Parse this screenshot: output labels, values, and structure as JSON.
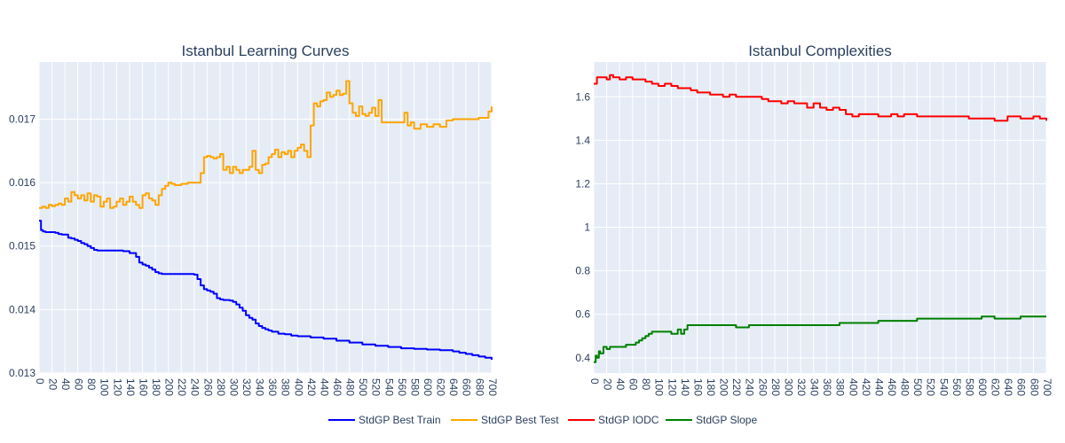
{
  "chart_data": [
    {
      "type": "line",
      "title": "Istanbul Learning Curves",
      "xlabel": "",
      "ylabel": "",
      "xlim": [
        0,
        700
      ],
      "ylim": [
        0.013,
        0.0179
      ],
      "x_ticks": [
        0,
        20,
        40,
        60,
        80,
        100,
        120,
        140,
        160,
        180,
        200,
        220,
        240,
        260,
        280,
        300,
        320,
        340,
        360,
        380,
        400,
        420,
        440,
        460,
        480,
        500,
        520,
        540,
        560,
        580,
        600,
        620,
        640,
        660,
        680,
        700
      ],
      "y_ticks": [
        0.013,
        0.014,
        0.015,
        0.016,
        0.017
      ],
      "y_tick_labels": [
        "0.013",
        "0.014",
        "0.015",
        "0.016",
        "0.017"
      ],
      "grid": true,
      "series": [
        {
          "name": "StdGP Best Train",
          "color": "#0000ff",
          "x": [
            0,
            3,
            6,
            10,
            25,
            30,
            35,
            45,
            50,
            55,
            60,
            65,
            70,
            75,
            80,
            85,
            90,
            100,
            130,
            140,
            150,
            155,
            160,
            165,
            170,
            175,
            180,
            185,
            190,
            200,
            240,
            245,
            250,
            255,
            260,
            265,
            270,
            275,
            280,
            285,
            295,
            300,
            305,
            310,
            315,
            320,
            325,
            330,
            335,
            340,
            345,
            350,
            355,
            360,
            370,
            380,
            390,
            400,
            420,
            440,
            460,
            480,
            500,
            520,
            540,
            560,
            580,
            600,
            620,
            640,
            650,
            660,
            670,
            680,
            690,
            700
          ],
          "values": [
            0.0154,
            0.01525,
            0.01523,
            0.01522,
            0.01521,
            0.01519,
            0.01518,
            0.01513,
            0.01512,
            0.0151,
            0.01508,
            0.01505,
            0.01503,
            0.015,
            0.01497,
            0.01494,
            0.01493,
            0.01493,
            0.01492,
            0.01489,
            0.01483,
            0.01474,
            0.01471,
            0.01469,
            0.01466,
            0.01463,
            0.01459,
            0.01457,
            0.01456,
            0.01456,
            0.01455,
            0.01448,
            0.01438,
            0.01432,
            0.0143,
            0.01428,
            0.01425,
            0.01418,
            0.01416,
            0.01415,
            0.01414,
            0.01412,
            0.01408,
            0.01403,
            0.01398,
            0.01391,
            0.01387,
            0.01384,
            0.01378,
            0.01374,
            0.01371,
            0.01369,
            0.01367,
            0.01365,
            0.01362,
            0.01361,
            0.01359,
            0.01358,
            0.01356,
            0.01354,
            0.01351,
            0.01348,
            0.01345,
            0.01343,
            0.01341,
            0.01339,
            0.01338,
            0.01337,
            0.01336,
            0.01334,
            0.01332,
            0.0133,
            0.01328,
            0.01326,
            0.01324,
            0.01321
          ]
        },
        {
          "name": "StdGP Best Test",
          "color": "#ffa500",
          "x": [
            0,
            5,
            10,
            15,
            20,
            25,
            30,
            35,
            40,
            45,
            50,
            55,
            60,
            65,
            70,
            75,
            80,
            85,
            90,
            95,
            100,
            105,
            110,
            115,
            120,
            125,
            130,
            135,
            140,
            145,
            150,
            155,
            160,
            165,
            170,
            175,
            180,
            185,
            190,
            195,
            200,
            205,
            210,
            220,
            230,
            240,
            250,
            255,
            260,
            265,
            270,
            275,
            280,
            285,
            290,
            295,
            300,
            305,
            310,
            315,
            320,
            325,
            330,
            335,
            340,
            345,
            350,
            355,
            360,
            365,
            370,
            375,
            380,
            385,
            390,
            395,
            400,
            405,
            410,
            415,
            420,
            425,
            430,
            435,
            440,
            445,
            450,
            455,
            460,
            465,
            470,
            475,
            480,
            485,
            490,
            495,
            500,
            505,
            510,
            515,
            520,
            525,
            530,
            540,
            550,
            560,
            565,
            570,
            575,
            580,
            590,
            600,
            610,
            620,
            630,
            640,
            660,
            680,
            690,
            695,
            700
          ],
          "values": [
            0.0156,
            0.01562,
            0.0156,
            0.01565,
            0.01563,
            0.01565,
            0.01567,
            0.01565,
            0.01575,
            0.0157,
            0.01585,
            0.0158,
            0.01575,
            0.0158,
            0.01572,
            0.01583,
            0.0157,
            0.0158,
            0.01578,
            0.01562,
            0.0157,
            0.01575,
            0.0156,
            0.01562,
            0.0157,
            0.01575,
            0.01565,
            0.0157,
            0.01578,
            0.0157,
            0.01565,
            0.0156,
            0.0158,
            0.01583,
            0.01575,
            0.01572,
            0.01565,
            0.0158,
            0.0159,
            0.01595,
            0.016,
            0.01598,
            0.01596,
            0.01598,
            0.016,
            0.016,
            0.01615,
            0.0164,
            0.01642,
            0.0164,
            0.01638,
            0.0164,
            0.01645,
            0.0162,
            0.01625,
            0.01615,
            0.01625,
            0.0162,
            0.01615,
            0.0162,
            0.0162,
            0.01625,
            0.0165,
            0.0162,
            0.01615,
            0.01628,
            0.0163,
            0.0164,
            0.01645,
            0.01652,
            0.0164,
            0.01648,
            0.01645,
            0.0165,
            0.0164,
            0.0165,
            0.01655,
            0.0166,
            0.0165,
            0.0164,
            0.0169,
            0.01725,
            0.0172,
            0.01728,
            0.0173,
            0.01742,
            0.01735,
            0.01738,
            0.01745,
            0.01738,
            0.0174,
            0.0176,
            0.01725,
            0.0171,
            0.01705,
            0.0172,
            0.01708,
            0.01705,
            0.0171,
            0.01718,
            0.01705,
            0.0173,
            0.01695,
            0.01695,
            0.01695,
            0.01695,
            0.0171,
            0.0169,
            0.01695,
            0.01685,
            0.01692,
            0.01688,
            0.01692,
            0.01688,
            0.01698,
            0.017,
            0.017,
            0.01702,
            0.01702,
            0.01712,
            0.0172
          ]
        }
      ]
    },
    {
      "type": "line",
      "title": "Istanbul Complexities",
      "xlabel": "",
      "ylabel": "",
      "xlim": [
        0,
        700
      ],
      "ylim": [
        0.33,
        1.76
      ],
      "x_ticks": [
        0,
        20,
        40,
        60,
        80,
        100,
        120,
        140,
        160,
        180,
        200,
        220,
        240,
        260,
        280,
        300,
        320,
        340,
        360,
        380,
        400,
        420,
        440,
        460,
        480,
        500,
        520,
        540,
        560,
        580,
        600,
        620,
        640,
        660,
        680,
        700
      ],
      "y_ticks": [
        0.4,
        0.6,
        0.8,
        1,
        1.2,
        1.4,
        1.6
      ],
      "y_tick_labels": [
        "0.4",
        "0.6",
        "0.8",
        "1",
        "1.2",
        "1.4",
        "1.6"
      ],
      "grid": true,
      "series": [
        {
          "name": "StdGP IODC",
          "color": "#ff0000",
          "x": [
            0,
            5,
            10,
            15,
            20,
            25,
            30,
            40,
            50,
            60,
            70,
            80,
            90,
            100,
            110,
            120,
            130,
            140,
            150,
            160,
            170,
            180,
            190,
            200,
            210,
            220,
            240,
            260,
            270,
            280,
            290,
            300,
            310,
            320,
            330,
            340,
            350,
            360,
            370,
            380,
            390,
            400,
            410,
            420,
            440,
            460,
            470,
            480,
            490,
            500,
            520,
            540,
            560,
            580,
            600,
            620,
            640,
            660,
            680,
            690,
            700
          ],
          "values": [
            1.66,
            1.69,
            1.69,
            1.69,
            1.68,
            1.7,
            1.69,
            1.68,
            1.69,
            1.68,
            1.68,
            1.67,
            1.66,
            1.65,
            1.66,
            1.65,
            1.64,
            1.64,
            1.63,
            1.62,
            1.62,
            1.61,
            1.61,
            1.6,
            1.61,
            1.6,
            1.6,
            1.59,
            1.58,
            1.58,
            1.57,
            1.58,
            1.57,
            1.57,
            1.55,
            1.57,
            1.55,
            1.54,
            1.55,
            1.54,
            1.52,
            1.51,
            1.52,
            1.52,
            1.51,
            1.52,
            1.51,
            1.52,
            1.52,
            1.51,
            1.51,
            1.51,
            1.51,
            1.5,
            1.5,
            1.49,
            1.51,
            1.5,
            1.51,
            1.5,
            1.49
          ]
        },
        {
          "name": "StdGP Slope",
          "color": "#008000",
          "x": [
            0,
            3,
            5,
            8,
            10,
            15,
            20,
            25,
            30,
            40,
            50,
            55,
            60,
            65,
            70,
            75,
            80,
            85,
            90,
            95,
            100,
            110,
            120,
            130,
            135,
            140,
            145,
            150,
            160,
            180,
            200,
            220,
            240,
            260,
            280,
            300,
            320,
            340,
            360,
            380,
            400,
            420,
            440,
            460,
            480,
            500,
            520,
            540,
            560,
            580,
            600,
            620,
            640,
            660,
            680,
            700
          ],
          "values": [
            0.38,
            0.41,
            0.4,
            0.43,
            0.42,
            0.45,
            0.44,
            0.45,
            0.45,
            0.45,
            0.46,
            0.46,
            0.46,
            0.47,
            0.48,
            0.49,
            0.5,
            0.51,
            0.52,
            0.52,
            0.52,
            0.52,
            0.51,
            0.53,
            0.51,
            0.53,
            0.55,
            0.55,
            0.55,
            0.55,
            0.55,
            0.54,
            0.55,
            0.55,
            0.55,
            0.55,
            0.55,
            0.55,
            0.55,
            0.56,
            0.56,
            0.56,
            0.57,
            0.57,
            0.57,
            0.58,
            0.58,
            0.58,
            0.58,
            0.58,
            0.59,
            0.58,
            0.58,
            0.59,
            0.59,
            0.59
          ]
        }
      ]
    }
  ],
  "legend": {
    "placement": "bottom-center",
    "items": [
      {
        "label": "StdGP Best Train",
        "color": "#0000ff"
      },
      {
        "label": "StdGP Best Test",
        "color": "#ffa500"
      },
      {
        "label": "StdGP IODC",
        "color": "#ff0000"
      },
      {
        "label": "StdGP Slope",
        "color": "#008000"
      }
    ]
  },
  "colors": {
    "plot_background": "#e5ecf6",
    "grid": "#ffffff",
    "text": "#2a3f5f"
  }
}
